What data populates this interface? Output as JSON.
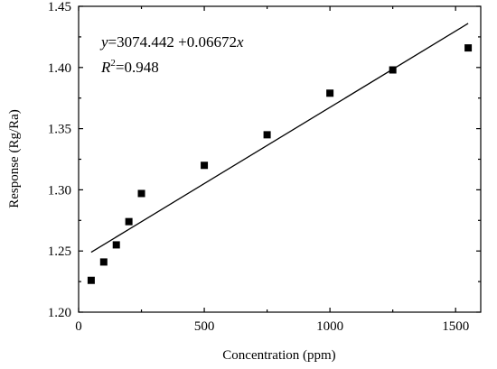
{
  "chart_data": {
    "type": "scatter",
    "title": "",
    "xlabel": "Concentration (ppm)",
    "ylabel": "Response (Rg/Ra)",
    "xlim": [
      0,
      1600
    ],
    "ylim": [
      1.2,
      1.45
    ],
    "xticks": [
      0,
      500,
      1000,
      1500
    ],
    "xtick_labels": [
      "0",
      "500",
      "1000",
      "1500"
    ],
    "yticks": [
      1.2,
      1.25,
      1.3,
      1.35,
      1.4,
      1.45
    ],
    "ytick_labels": [
      "1.20",
      "1.25",
      "1.30",
      "1.35",
      "1.40",
      "1.45"
    ],
    "grid": false,
    "series": [
      {
        "marker": "square",
        "color": "#000000",
        "points": [
          {
            "x": 50,
            "y": 1.226
          },
          {
            "x": 100,
            "y": 1.241
          },
          {
            "x": 150,
            "y": 1.255
          },
          {
            "x": 200,
            "y": 1.274
          },
          {
            "x": 250,
            "y": 1.297
          },
          {
            "x": 500,
            "y": 1.32
          },
          {
            "x": 750,
            "y": 1.345
          },
          {
            "x": 1000,
            "y": 1.379
          },
          {
            "x": 1250,
            "y": 1.398
          },
          {
            "x": 1550,
            "y": 1.416
          }
        ]
      }
    ],
    "fit_line": {
      "x": [
        50,
        1550
      ],
      "y": [
        1.249,
        1.436
      ],
      "color": "#000000"
    },
    "annotations": {
      "equation": {
        "var_y": "y",
        "middle": "=3074.442 +0.06672",
        "var_x": "x"
      },
      "r_squared": {
        "symbol": "R",
        "exponent": "2",
        "value": "=0.948"
      }
    }
  }
}
